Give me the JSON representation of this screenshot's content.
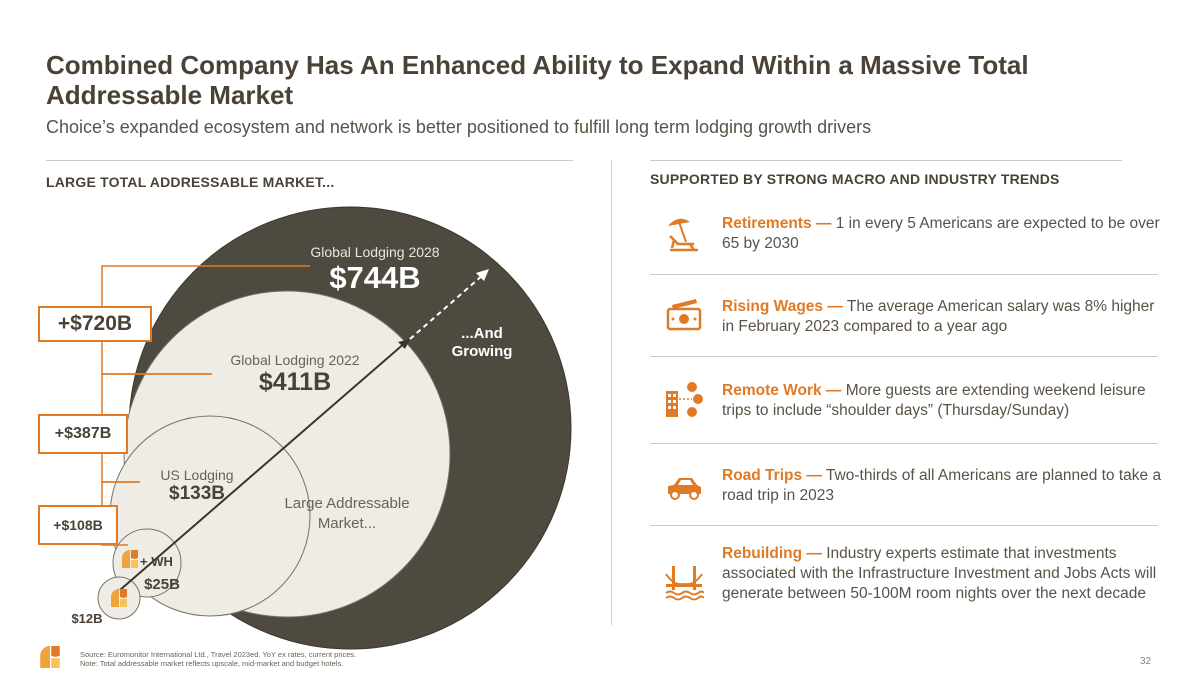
{
  "header": {
    "title": "Combined Company Has An Enhanced Ability to Expand Within a Massive Total Addressable Market",
    "subtitle": "Choice’s expanded ecosystem and network is better positioned to fulfill long term lodging growth drivers"
  },
  "left": {
    "heading": "LARGE TOTAL ADDRESSABLE MARKET...",
    "global_2028": {
      "label": "Global Lodging 2028",
      "value": "$744B"
    },
    "global_2022": {
      "label": "Global Lodging 2022",
      "value": "$411B"
    },
    "us": {
      "label": "US Lodging",
      "value": "$133B"
    },
    "large_market": "Large Addressable Market...",
    "wh": {
      "label": "+ WH",
      "value": "$25B"
    },
    "choice": {
      "value": "$12B"
    },
    "growing": "...And Growing",
    "increments": [
      "+$720B",
      "+$387B",
      "+$108B"
    ]
  },
  "right": {
    "heading": "SUPPORTED BY STRONG MACRO AND INDUSTRY TRENDS",
    "trends": [
      {
        "icon": "beach-chair-icon",
        "title": "Retirements —",
        "text": " 1 in every 5 Americans are expected to be over 65 by 2030"
      },
      {
        "icon": "money-icon",
        "title": "Rising Wages —",
        "text": " The average American salary was 8% higher in February 2023 compared to a year ago"
      },
      {
        "icon": "remote-work-icon",
        "title": "Remote Work —",
        "text": " More guests are extending weekend leisure trips to include “shoulder days” (Thursday/Sunday)"
      },
      {
        "icon": "car-icon",
        "title": "Road Trips —",
        "text": " Two-thirds of all Americans are planned to take a road trip in 2023"
      },
      {
        "icon": "bridge-icon",
        "title": "Rebuilding —",
        "text": " Industry experts estimate that investments associated with the Infrastructure Investment and Jobs Acts will generate between 50-100M room nights over the next decade"
      }
    ]
  },
  "footer": {
    "source": "Source: Euromonitor International Ltd., Travel 2023ed. YoY ex rates, current prices.",
    "note": "Note: Total addressable market reflects upscale, mid-market and budget hotels.",
    "page": "32"
  },
  "colors": {
    "accent": "#e07a24",
    "dark": "#4f4a40",
    "cream": "#efece6",
    "text": "#4a4236"
  }
}
